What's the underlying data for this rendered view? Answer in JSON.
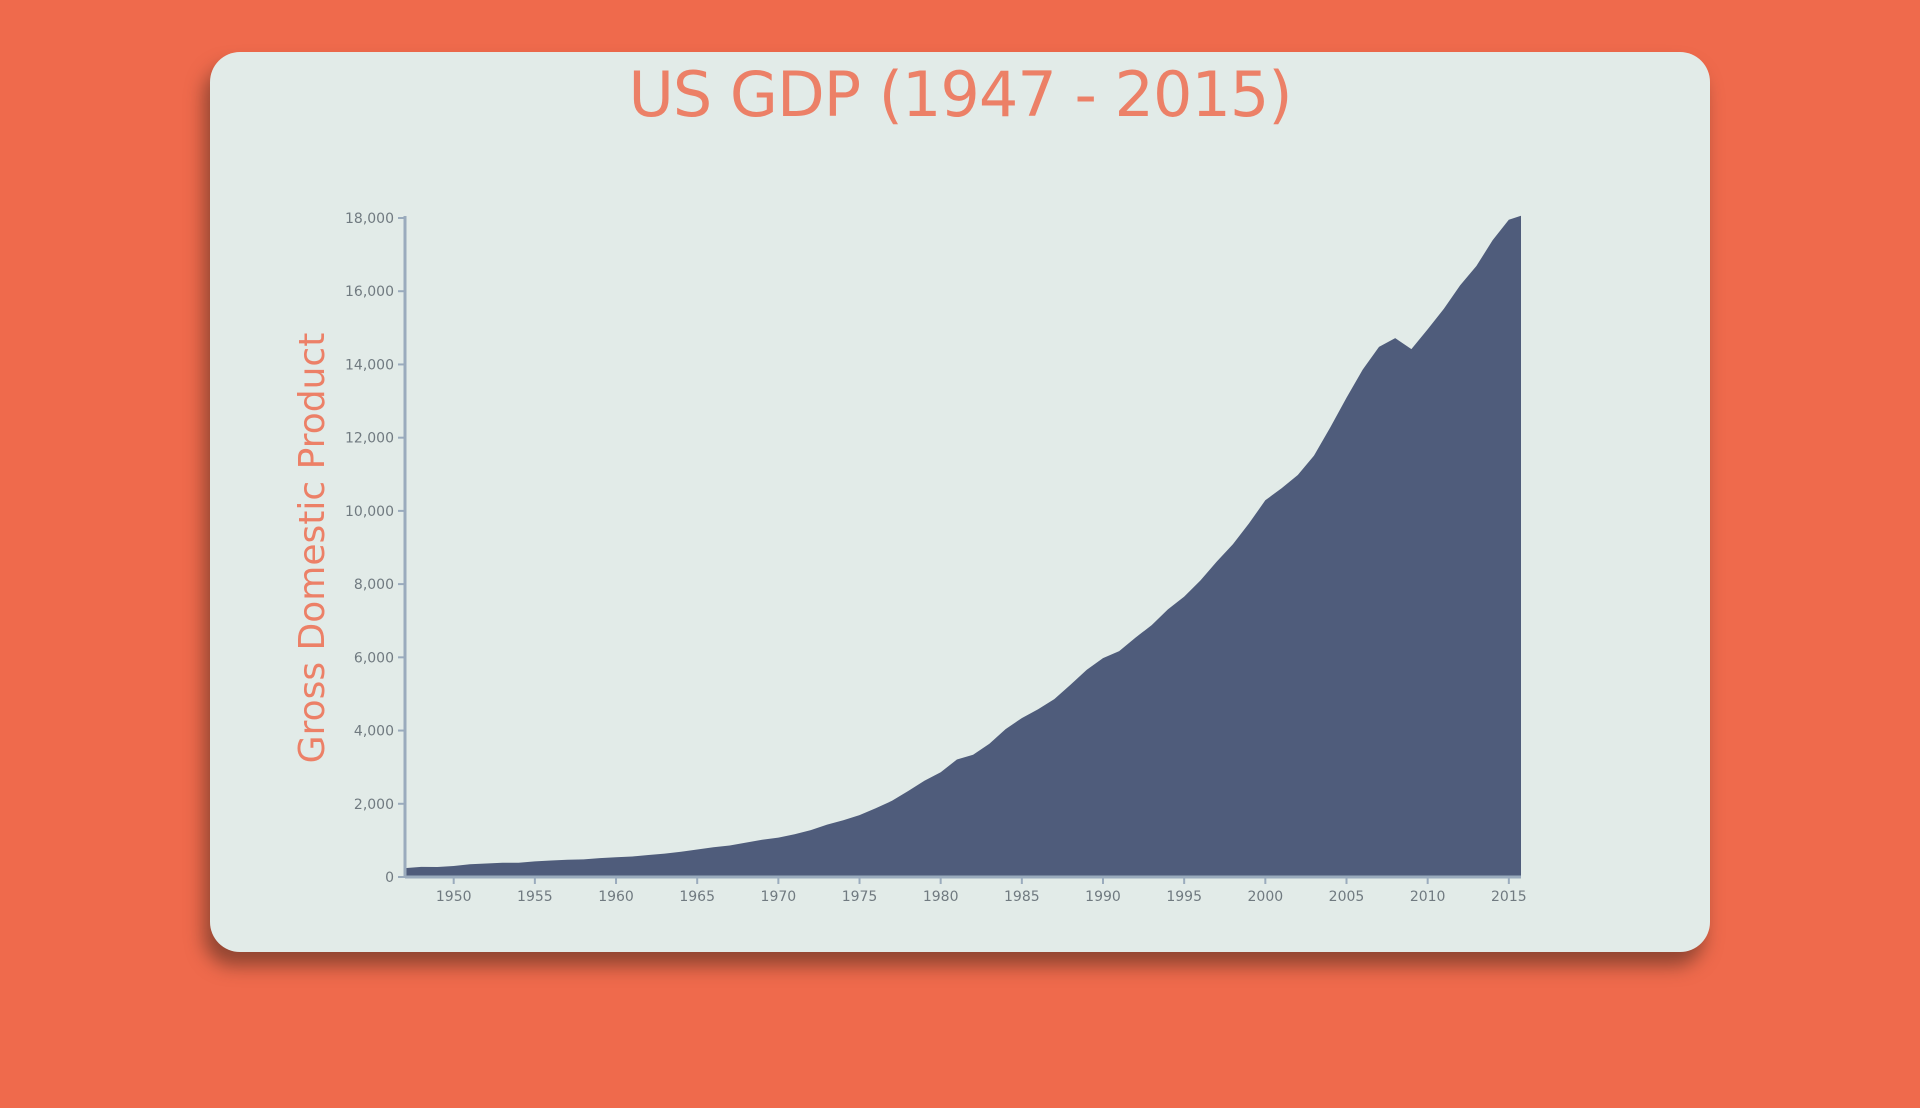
{
  "colors": {
    "background": "#ef6a4c",
    "card": "#e2ebe8",
    "title": "#ec8067",
    "area": "#4f5c7b",
    "axis": "#9aabbd",
    "tick_text": "#707a80"
  },
  "chart_data": {
    "type": "area",
    "title": "US GDP (1947 - 2015)",
    "ylabel": "Gross Domestic Product",
    "xlabel": "",
    "xlim": [
      1947.0,
      2015.75
    ],
    "ylim": [
      0,
      18000
    ],
    "x_ticks": [
      1950,
      1955,
      1960,
      1965,
      1970,
      1975,
      1980,
      1985,
      1990,
      1995,
      2000,
      2005,
      2010,
      2015
    ],
    "y_ticks": [
      0,
      2000,
      4000,
      6000,
      8000,
      10000,
      12000,
      14000,
      16000,
      18000
    ],
    "y_tick_labels": [
      "0",
      "2,000",
      "4,000",
      "6,000",
      "8,000",
      "10,000",
      "12,000",
      "14,000",
      "16,000",
      "18,000"
    ],
    "grid": false,
    "legend": "none",
    "series": [
      {
        "x": [
          1947,
          1948,
          1949,
          1950,
          1951,
          1952,
          1953,
          1954,
          1955,
          1956,
          1957,
          1958,
          1959,
          1960,
          1961,
          1962,
          1963,
          1964,
          1965,
          1966,
          1967,
          1968,
          1969,
          1970,
          1971,
          1972,
          1973,
          1974,
          1975,
          1976,
          1977,
          1978,
          1979,
          1980,
          1981,
          1982,
          1983,
          1984,
          1985,
          1986,
          1987,
          1988,
          1989,
          1990,
          1991,
          1992,
          1993,
          1994,
          1995,
          1996,
          1997,
          1998,
          1999,
          2000,
          2001,
          2002,
          2003,
          2004,
          2005,
          2006,
          2007,
          2008,
          2009,
          2010,
          2011,
          2012,
          2013,
          2014,
          2015,
          2015.75
        ],
        "y": [
          243,
          275,
          272,
          300,
          350,
          370,
          390,
          390,
          425,
          450,
          470,
          480,
          515,
          540,
          560,
          600,
          640,
          690,
          750,
          815,
          860,
          940,
          1020,
          1075,
          1165,
          1280,
          1430,
          1550,
          1690,
          1880,
          2080,
          2350,
          2630,
          2860,
          3210,
          3340,
          3640,
          4040,
          4340,
          4580,
          4860,
          5250,
          5660,
          5980,
          6170,
          6540,
          6880,
          7310,
          7660,
          8100,
          8610,
          9090,
          9660,
          10290,
          10620,
          10980,
          11510,
          12280,
          13090,
          13860,
          14480,
          14720,
          14420,
          14960,
          15520,
          16160,
          16690,
          17390,
          17950,
          18060
        ]
      }
    ]
  }
}
